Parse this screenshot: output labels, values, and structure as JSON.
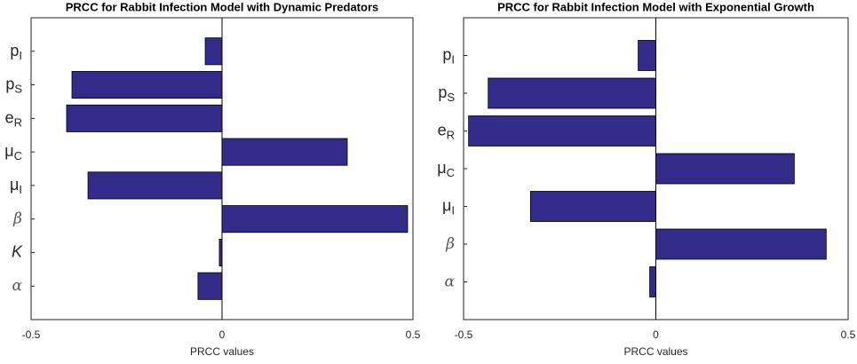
{
  "chart_data": [
    {
      "type": "barh",
      "title": "PRCC for Rabbit Infection Model with Dynamic Predators",
      "xlabel": "PRCC values",
      "categories": [
        [
          "p",
          "I"
        ],
        [
          "p",
          "S"
        ],
        [
          "e",
          "R"
        ],
        [
          "μ",
          "C"
        ],
        [
          "μ",
          "I"
        ],
        [
          "β"
        ],
        [
          "K"
        ],
        [
          "α"
        ]
      ],
      "values": [
        -0.044,
        -0.393,
        -0.407,
        0.328,
        -0.351,
        0.486,
        -0.007,
        -0.063
      ],
      "color": "#332b8a",
      "xlim": [
        -0.5,
        0.5
      ],
      "xticks": [
        -0.5,
        0,
        0.5
      ]
    },
    {
      "type": "barh",
      "title": "PRCC for Rabbit Infection Model with Exponential Growth",
      "xlabel": "PRCC values",
      "categories": [
        [
          "p",
          "I"
        ],
        [
          "p",
          "S"
        ],
        [
          "e",
          "R"
        ],
        [
          "μ",
          "C"
        ],
        [
          "μ",
          "I"
        ],
        [
          "β"
        ],
        [
          "α"
        ]
      ],
      "values": [
        -0.046,
        -0.436,
        -0.487,
        0.36,
        -0.326,
        0.443,
        -0.016
      ],
      "color": "#332b8a",
      "xlim": [
        -0.5,
        0.5
      ],
      "xticks": [
        -0.5,
        0,
        0.5
      ]
    }
  ]
}
